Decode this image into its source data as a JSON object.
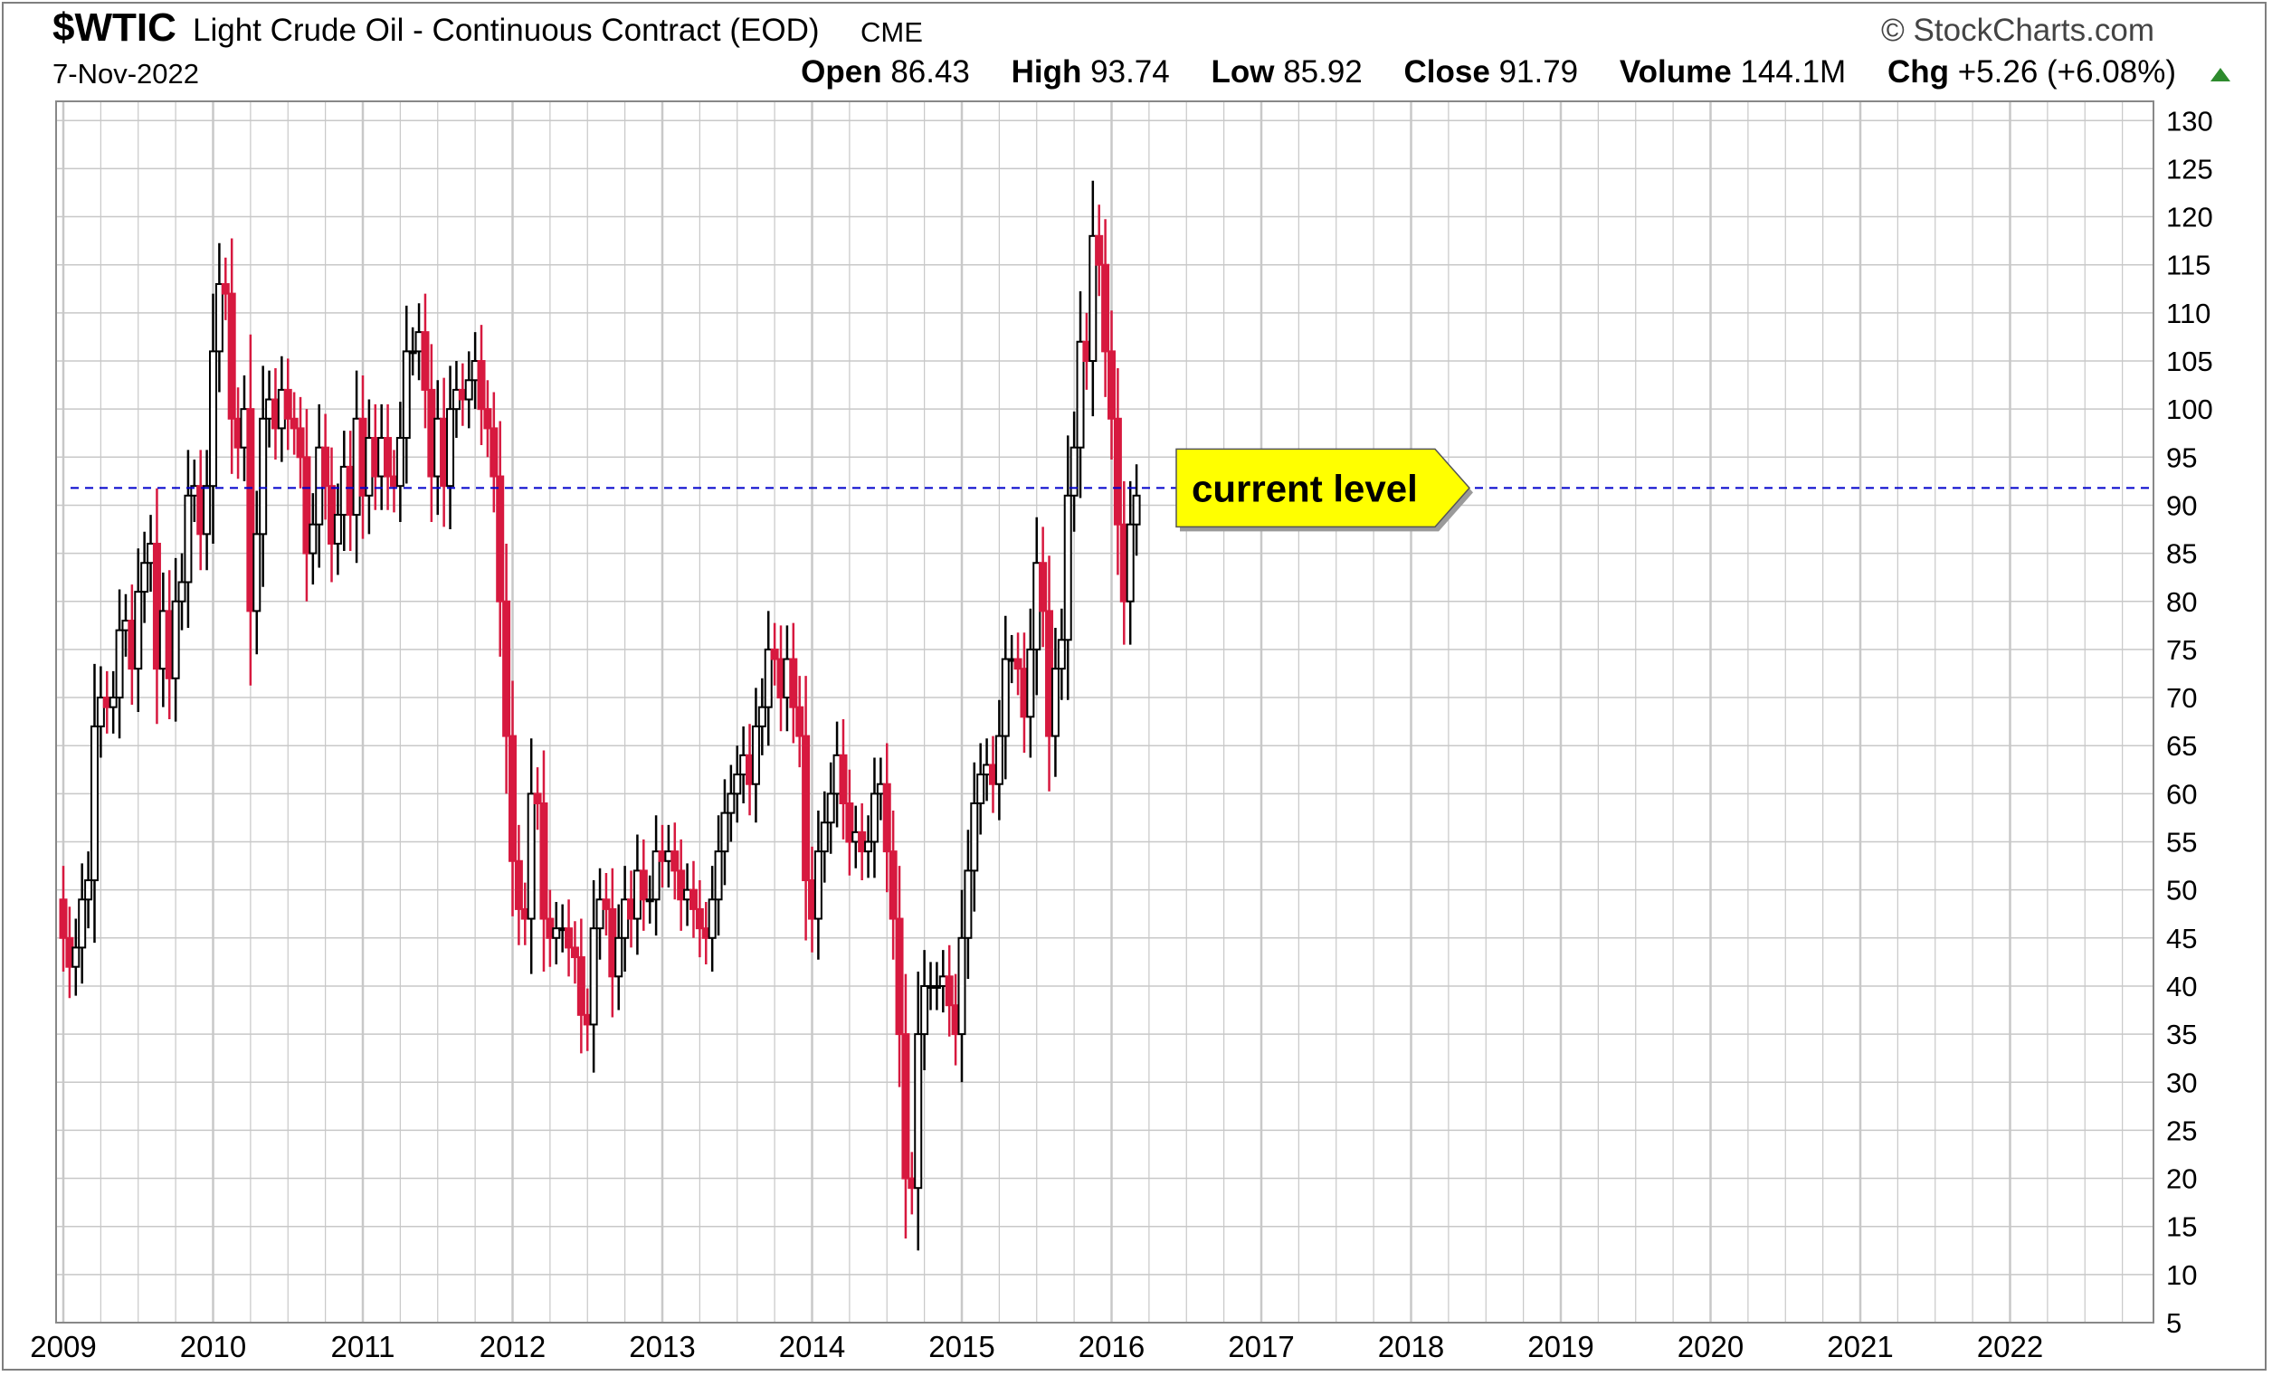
{
  "header": {
    "symbol": "$WTIC",
    "name": "Light Crude Oil - Continuous Contract (EOD)",
    "exchange": "CME",
    "brand": "StockCharts.com",
    "date": "7-Nov-2022",
    "open_label": "Open",
    "open_value": "86.43",
    "high_label": "High",
    "high_value": "93.74",
    "low_label": "Low",
    "low_value": "85.92",
    "close_label": "Close",
    "close_value": "91.79",
    "volume_label": "Volume",
    "volume_value": "144.1M",
    "chg_label": "Chg",
    "chg_value": "+5.26 (+6.08%)"
  },
  "colors": {
    "up": "#000000",
    "down": "#d7193f",
    "grid": "#c8c8c8",
    "reference_line": "#0000cc",
    "callout_fill": "#ffff00",
    "change_arrow": "#2e8b2e"
  },
  "chart_data": {
    "type": "candlestick",
    "title": "$WTIC Light Crude Oil - Continuous Contract (EOD)",
    "xlabel": "",
    "ylabel": "",
    "ylim": [
      5,
      132
    ],
    "yticks": [
      5,
      10,
      15,
      20,
      25,
      30,
      35,
      40,
      45,
      50,
      55,
      60,
      65,
      70,
      75,
      80,
      85,
      90,
      95,
      100,
      105,
      110,
      115,
      120,
      125,
      130
    ],
    "year_labels": [
      "2009",
      "2010",
      "2011",
      "2012",
      "2013",
      "2014",
      "2015",
      "2016",
      "2017",
      "2018",
      "2019",
      "2020",
      "2021",
      "2022"
    ],
    "y_axis_position": "right",
    "grid": true,
    "annotation": {
      "text": "current level",
      "value": 91.79
    },
    "closes": [
      [
        45,
        42,
        44,
        49,
        51,
        67,
        70,
        69,
        70,
        77,
        78,
        73,
        81,
        84,
        86,
        73,
        79,
        72,
        80,
        82,
        91,
        92,
        87,
        92
      ],
      [
        106,
        113,
        112,
        99,
        96,
        100,
        79,
        87,
        99,
        101,
        98,
        102,
        99,
        98,
        95,
        85,
        88,
        96,
        92,
        86,
        89,
        94,
        89,
        99
      ],
      [
        91,
        97,
        93,
        97,
        93,
        92,
        97,
        106,
        106,
        108,
        102,
        93,
        99,
        92,
        100,
        102,
        101,
        103,
        105,
        100,
        98,
        93,
        80,
        66
      ],
      [
        53,
        48,
        47,
        60,
        59,
        47,
        45,
        46,
        46,
        44,
        43,
        37,
        36,
        46,
        49,
        48,
        41,
        45,
        49,
        47,
        52,
        49,
        49,
        54
      ],
      [
        53,
        54,
        52,
        49,
        50,
        48,
        46,
        45,
        49,
        54,
        58,
        60,
        62,
        64,
        61,
        67,
        69,
        75,
        74,
        70,
        74,
        69,
        66,
        51
      ],
      [
        47,
        54,
        57,
        60,
        64,
        59,
        55,
        56,
        54,
        55,
        60,
        61,
        54,
        47,
        35,
        20,
        19,
        35,
        40,
        40,
        40,
        41,
        38,
        35
      ],
      [
        45,
        52,
        59,
        62,
        63,
        61,
        66,
        74,
        74,
        73,
        68,
        75,
        84,
        79,
        66,
        73,
        76,
        91,
        96,
        107,
        105,
        118,
        115,
        106
      ],
      [
        99,
        88,
        80,
        88,
        91
      ]
    ]
  }
}
